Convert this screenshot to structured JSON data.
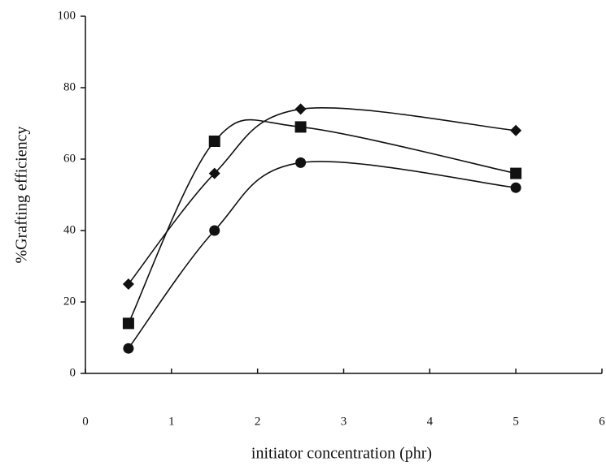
{
  "chart_data": {
    "type": "line",
    "smooth": true,
    "x_label": "initiator concentration (phr)",
    "y_label": "%Grafting efficiency",
    "x": [
      0.5,
      1.5,
      2.5,
      5
    ],
    "series": [
      {
        "marker": "diamond",
        "color": "#111111",
        "values": [
          25,
          56,
          74,
          68
        ]
      },
      {
        "marker": "square",
        "color": "#111111",
        "values": [
          14,
          65,
          69,
          56
        ]
      },
      {
        "marker": "circle",
        "color": "#111111",
        "values": [
          7,
          40,
          59,
          52
        ]
      }
    ],
    "xlim": [
      0,
      6
    ],
    "xticks": [
      0,
      1,
      2,
      3,
      4,
      5,
      6
    ],
    "ylim": [
      0,
      100
    ],
    "yticks": [
      0,
      20,
      40,
      60,
      80,
      100
    ],
    "grid": false
  }
}
